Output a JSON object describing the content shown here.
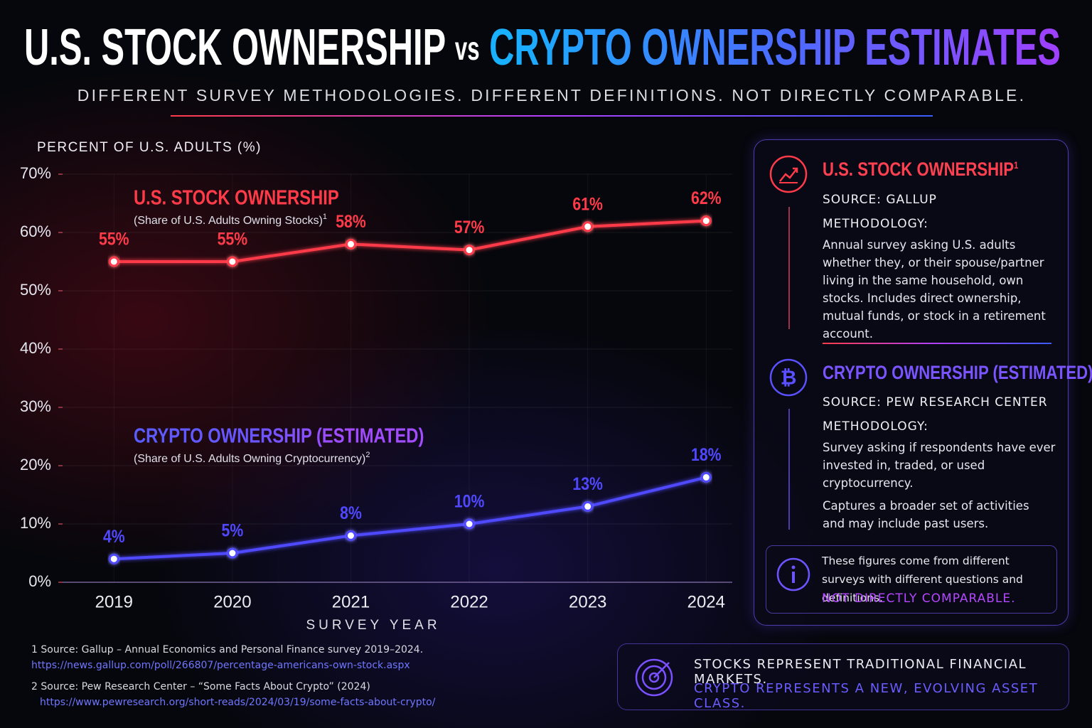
{
  "header": {
    "title": [
      "U.S. STOCK OWNERSHIP",
      "vs",
      "CRYPTO OWNERSHIP ESTIMATES"
    ],
    "subtitle": "DIFFERENT SURVEY METHODOLOGIES. DIFFERENT DEFINITIONS. NOT DIRECTLY COMPARABLE."
  },
  "chart_data": {
    "type": "line",
    "y_label": "PERCENT OF U.S. ADULTS (%)",
    "x_label": "SURVEY YEAR",
    "categories": [
      "2019",
      "2020",
      "2021",
      "2022",
      "2023",
      "2024"
    ],
    "series": [
      {
        "name": "U.S. STOCK OWNERSHIP",
        "note": "(Share of U.S. Adults Owning Stocks)",
        "note_ref": "1",
        "color": "#ff3b4a",
        "values": [
          55,
          55,
          58,
          57,
          61,
          62
        ],
        "value_labels": [
          "55%",
          "55%",
          "58%",
          "57%",
          "61%",
          "62%"
        ]
      },
      {
        "name": "CRYPTO OWNERSHIP (ESTIMATED)",
        "note": "(Share of U.S. Adults Owning Cryptocurrency)",
        "note_ref": "2",
        "color": "#5048ff",
        "values": [
          4,
          5,
          8,
          10,
          13,
          18
        ],
        "value_labels": [
          "4%",
          "5%",
          "8%",
          "10%",
          "13%",
          "18%"
        ]
      }
    ],
    "ylim": [
      0,
      70
    ],
    "yticks": [
      {
        "value": 0,
        "label": "0%"
      },
      {
        "value": 10,
        "label": "10%"
      },
      {
        "value": 20,
        "label": "20%"
      },
      {
        "value": 30,
        "label": "30%"
      },
      {
        "value": 40,
        "label": "40%"
      },
      {
        "value": 50,
        "label": "50%"
      },
      {
        "value": 60,
        "label": "60%"
      },
      {
        "value": 70,
        "label": "70%"
      }
    ],
    "grid": true
  },
  "panel": {
    "sections": [
      {
        "title": "U.S. STOCK OWNERSHIP",
        "ref": "1",
        "source": "SOURCE: GALLUP",
        "methodology_label": "METHODOLOGY:",
        "paragraphs": [
          "Annual survey asking U.S. adults whether they, or their spouse/partner living in the same household, own stocks. Includes direct ownership, mutual funds, or stock in a retirement account."
        ]
      },
      {
        "title": "CRYPTO OWNERSHIP (ESTIMATED)",
        "ref": "2",
        "source": "SOURCE: PEW RESEARCH CENTER",
        "methodology_label": "METHODOLOGY:",
        "paragraphs": [
          "Survey asking if respondents have ever invested in, traded, or used cryptocurrency.",
          "Captures a broader set of activities and may include past users."
        ]
      }
    ],
    "notice": {
      "text": "These figures come from different surveys with different questions and definitions.",
      "emphasis": "NOT DIRECTLY COMPARABLE."
    }
  },
  "callout": {
    "lines": [
      "STOCKS REPRESENT TRADITIONAL FINANCIAL MARKETS.",
      "CRYPTO REPRESENTS A NEW, EVOLVING ASSET CLASS."
    ]
  },
  "footnotes": [
    {
      "number": "1",
      "text": "Source: Gallup – Annual Economics and Personal Finance survey 2019–2024.",
      "url": "https://news.gallup.com/poll/266807/percentage-americans-own-stock.aspx"
    },
    {
      "number": "2",
      "text": "Source: Pew Research Center – “Some Facts About Crypto” (2024)",
      "url": "https://www.pewresearch.org/short-reads/2024/03/19/some-facts-about-crypto/"
    }
  ]
}
